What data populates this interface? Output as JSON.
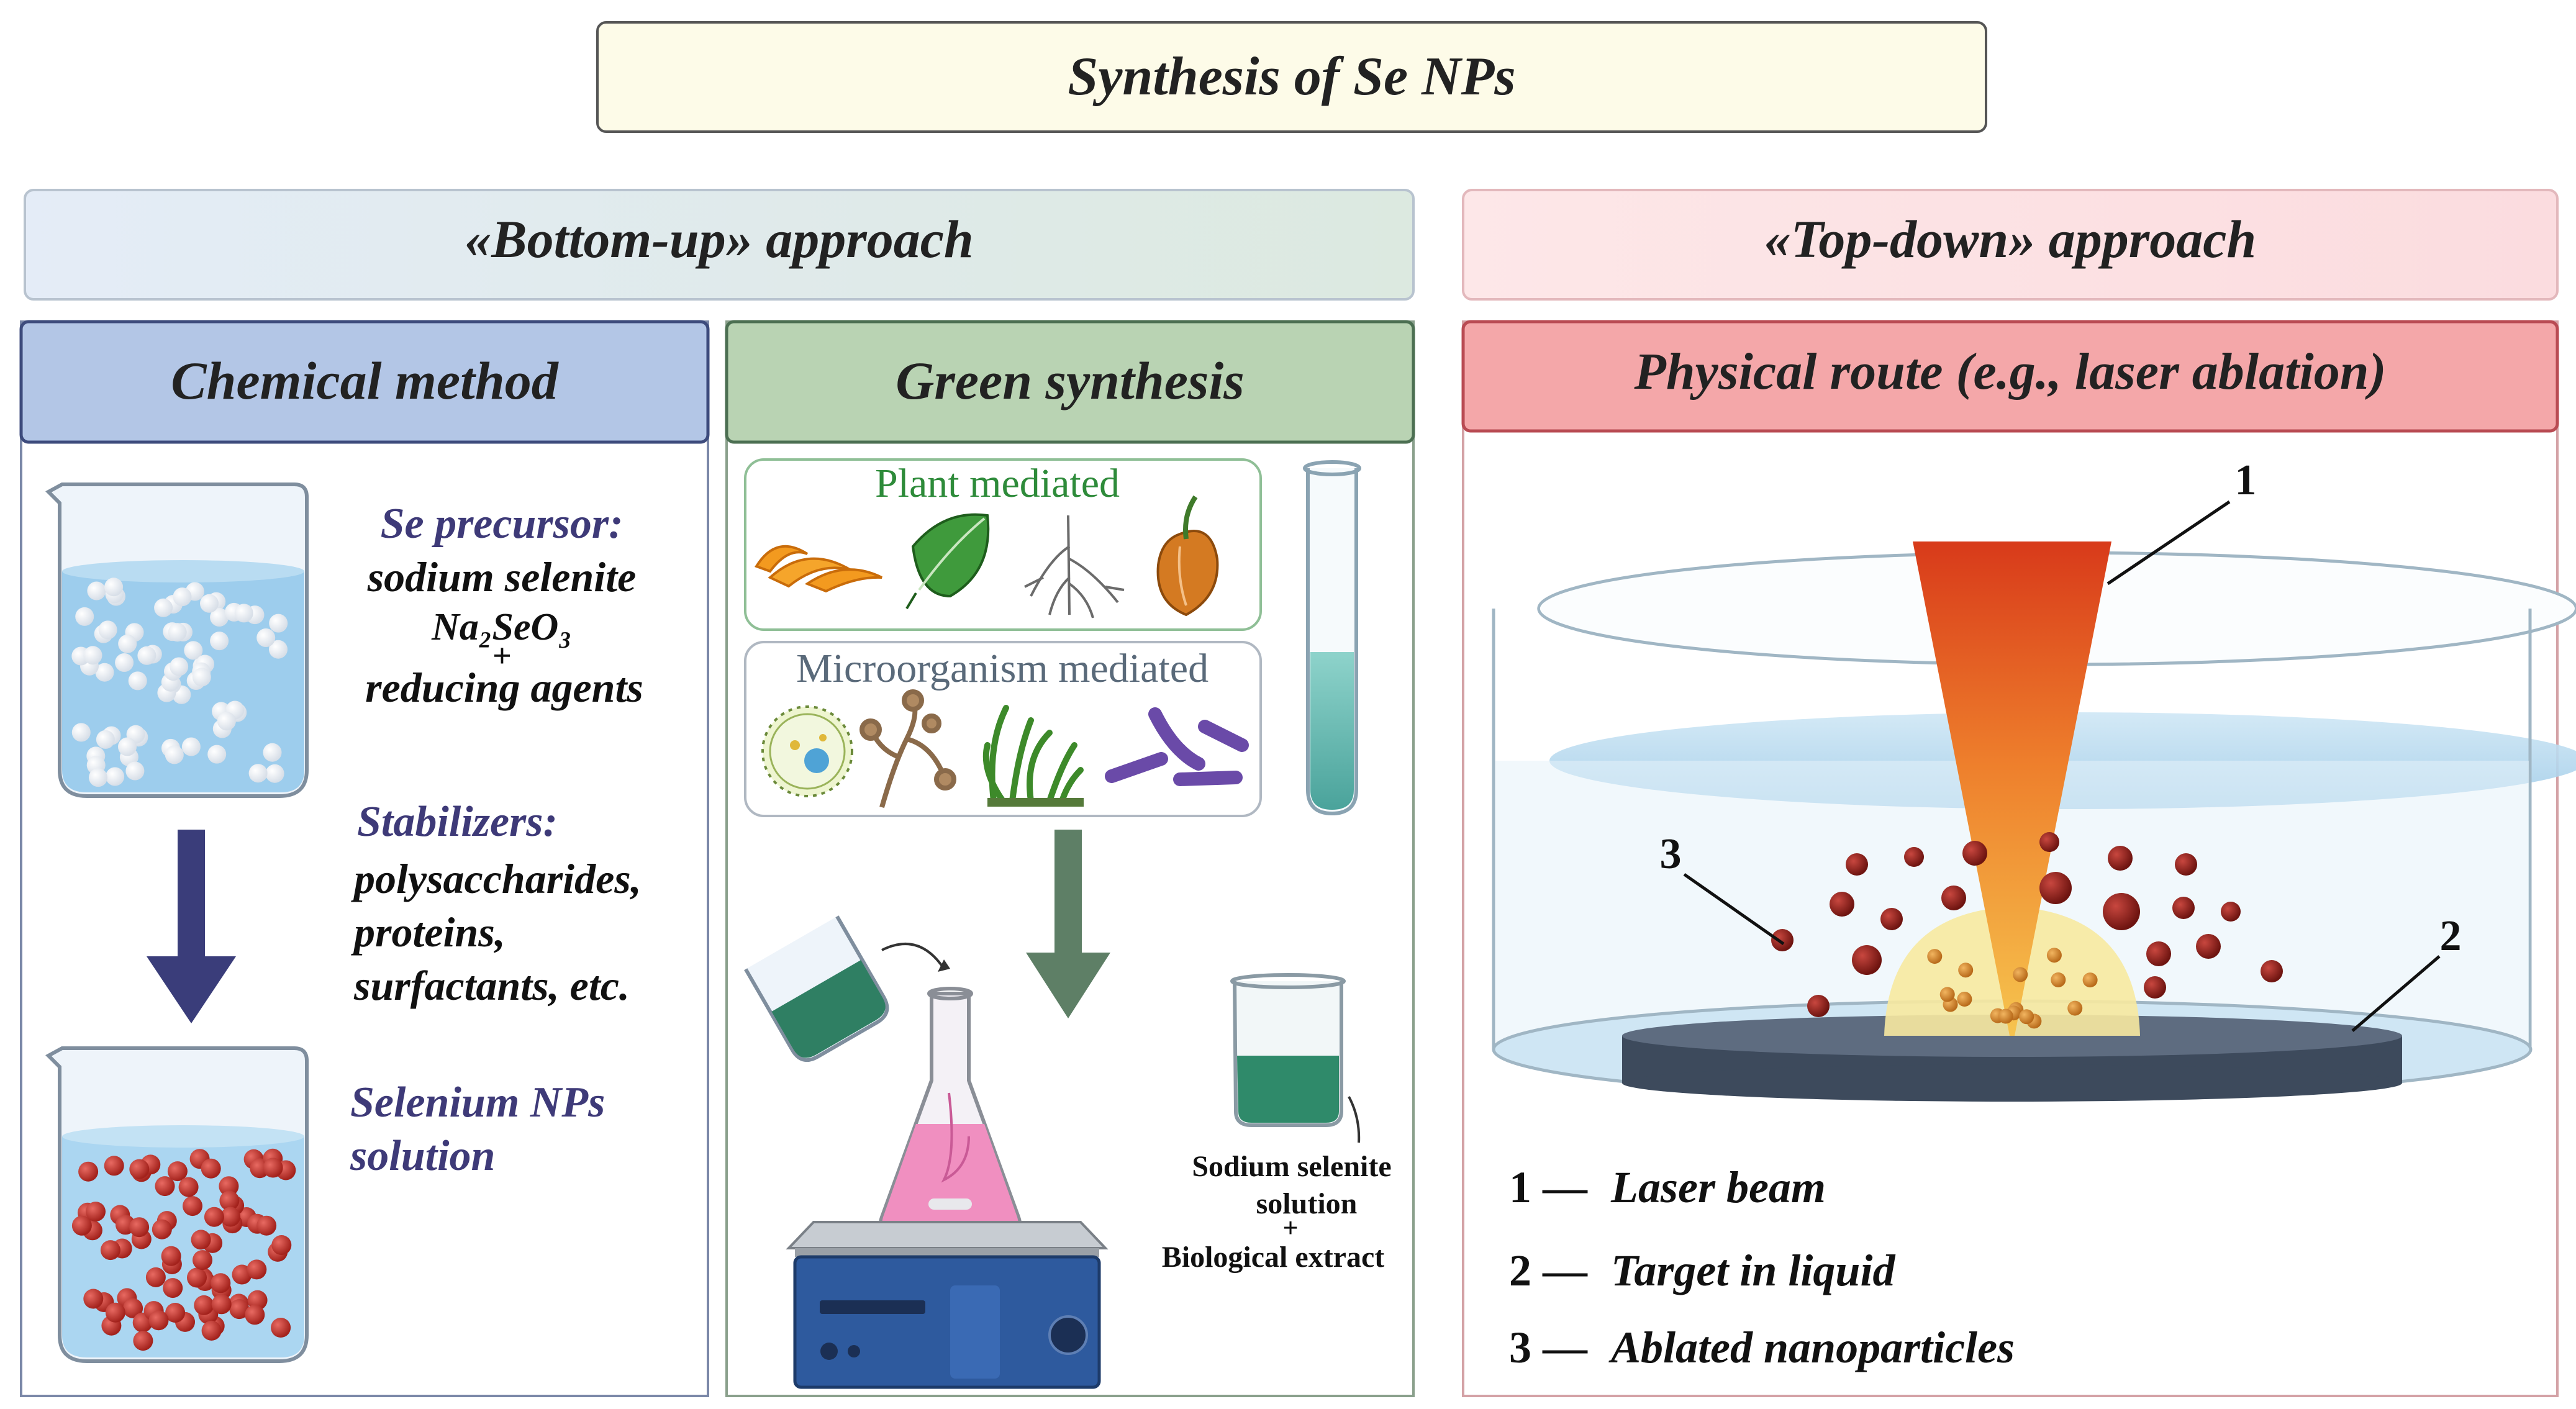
{
  "title": "Synthesis of Se NPs",
  "bottom_up": {
    "header": "«Bottom-up» approach",
    "chemical": {
      "header": "Chemical method",
      "precursor_label": "Se precursor:",
      "precursor_lines": [
        "sodium selenite",
        "Na₂SeO₃",
        "+",
        "reducing agents"
      ],
      "stabilizers_label": "Stabilizers:",
      "stabilizers_lines": [
        "polysaccharides,",
        "proteins,",
        "surfactants, etc."
      ],
      "product_lines": [
        "Selenium NPs",
        "solution"
      ]
    },
    "green": {
      "header": "Green synthesis",
      "plant_label": "Plant mediated",
      "micro_label": "Microorganism mediated",
      "solution_lines": [
        "Sodium selenite",
        "solution",
        "+",
        "Biological extract"
      ]
    }
  },
  "top_down": {
    "header": "«Top-down» approach",
    "physical": {
      "header": "Physical route (e.g., laser ablation)",
      "callouts": [
        "1",
        "2",
        "3"
      ],
      "legend": [
        {
          "num": "1",
          "dash": "—",
          "text": "Laser beam"
        },
        {
          "num": "2",
          "dash": "—",
          "text": "Target in liquid"
        },
        {
          "num": "3",
          "dash": "—",
          "text": "Ablated nanoparticles"
        }
      ]
    }
  },
  "colors": {
    "title_bg": "#fdfbe8",
    "bottom_up_bg": "#dfe7ee",
    "top_down_bg": "#fbe0e2",
    "chemical_header": "#b3c6e6",
    "green_header": "#b9d3b3",
    "physical_header": "#f4a7a9",
    "label_purple": "#3e3a78",
    "plant_green": "#2e8b3a",
    "arrow_navy": "#3a3d7a",
    "arrow_green": "#5e7f66"
  }
}
